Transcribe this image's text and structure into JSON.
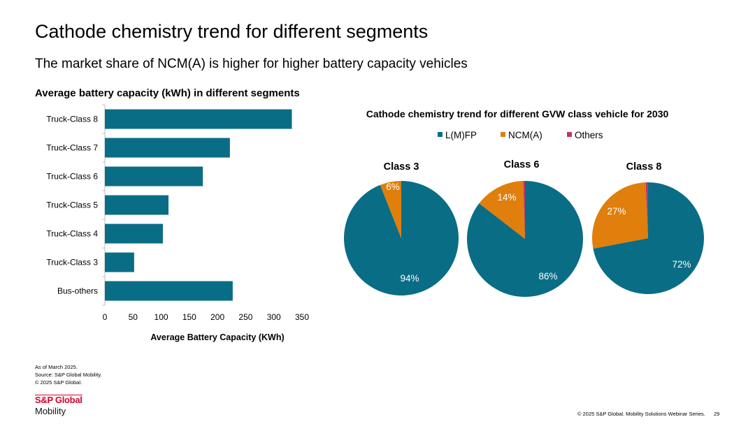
{
  "slide": {
    "title": "Cathode chemistry trend for different segments",
    "subtitle": "The market share of NCM(A) is higher for higher battery capacity vehicles",
    "footnotes": [
      "As of March 2025.",
      "Source: S&P Global Mobility.",
      "© 2025 S&P Global."
    ],
    "logo_top": "S&P Global",
    "logo_bottom": "Mobility",
    "copyright": "© 2025 S&P Global. Mobility Solutions Webinar Series.",
    "page_number": "29"
  },
  "colors": {
    "lfp": "#0a6d86",
    "ncm": "#e07f0c",
    "others": "#c4336b",
    "axis": "#bfbfbf"
  },
  "chart_data": [
    {
      "type": "bar",
      "orientation": "horizontal",
      "title": "Average battery capacity (kWh) in different segments",
      "xlabel": "Average Battery Capacity (KWh)",
      "ylabel": "",
      "categories": [
        "Truck-Class 8",
        "Truck-Class 7",
        "Truck-Class 6",
        "Truck-Class 5",
        "Truck-Class 4",
        "Truck-Class 3",
        "Bus-others"
      ],
      "values": [
        332,
        222,
        174,
        113,
        103,
        52,
        227
      ],
      "xlim": [
        0,
        350
      ],
      "xticks": [
        "0",
        "50",
        "100",
        "150",
        "200",
        "250",
        "300",
        "350"
      ],
      "grid": false
    },
    {
      "type": "pie",
      "title": "Cathode chemistry trend for different GVW class vehicle for 2030",
      "legend": [
        "L(M)FP",
        "NCM(A)",
        "Others"
      ],
      "legend_position": "top",
      "pies": [
        {
          "name": "Class 3",
          "slices": [
            {
              "label": "L(M)FP",
              "value": 94,
              "text": "94%"
            },
            {
              "label": "NCM(A)",
              "value": 6,
              "text": "6%"
            },
            {
              "label": "Others",
              "value": 0,
              "text": ""
            }
          ]
        },
        {
          "name": "Class 6",
          "slices": [
            {
              "label": "L(M)FP",
              "value": 85.5,
              "text": "86%"
            },
            {
              "label": "NCM(A)",
              "value": 14,
              "text": "14%"
            },
            {
              "label": "Others",
              "value": 0.5,
              "text": ""
            }
          ]
        },
        {
          "name": "Class 8",
          "slices": [
            {
              "label": "L(M)FP",
              "value": 72,
              "text": "72%"
            },
            {
              "label": "NCM(A)",
              "value": 27.3,
              "text": "27%"
            },
            {
              "label": "Others",
              "value": 0.7,
              "text": ""
            }
          ]
        }
      ]
    }
  ]
}
